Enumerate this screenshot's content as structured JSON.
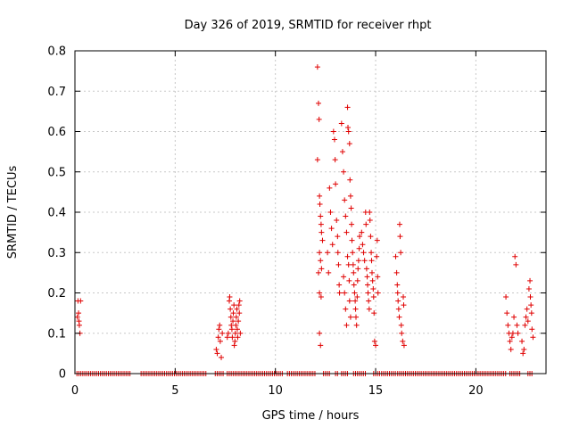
{
  "chart_data": {
    "type": "scatter",
    "title": "Day 326 of 2019, SRMTID for receiver rhpt",
    "xlabel": "GPS time / hours",
    "ylabel": "SRMTID / TECUs",
    "xlim": [
      0,
      23.5
    ],
    "ylim": [
      0,
      0.8
    ],
    "xticks": [
      0,
      5,
      10,
      15,
      20
    ],
    "xtick_labels": [
      "0",
      "5",
      "10",
      "15",
      "20"
    ],
    "yticks": [
      0,
      0.1,
      0.2,
      0.3,
      0.4,
      0.5,
      0.6,
      0.7,
      0.8
    ],
    "ytick_labels": [
      "0",
      "0.1",
      "0.2",
      "0.3",
      "0.4",
      "0.5",
      "0.6",
      "0.7",
      "0.8"
    ],
    "grid": true,
    "marker": "+",
    "color": "#e00000",
    "zero_ranges": [
      [
        0.1,
        2.8
      ],
      [
        3.3,
        6.6
      ],
      [
        7.0,
        7.4
      ],
      [
        7.6,
        10.4
      ],
      [
        10.6,
        12.0
      ],
      [
        12.4,
        12.7
      ],
      [
        13.0,
        13.1
      ],
      [
        13.3,
        13.6
      ],
      [
        13.9,
        14.5
      ],
      [
        14.9,
        15.2
      ],
      [
        15.3,
        16.0
      ],
      [
        16.1,
        21.5
      ],
      [
        21.7,
        22.2
      ],
      [
        22.6,
        22.8
      ]
    ],
    "points": [
      [
        0.15,
        0.18
      ],
      [
        0.18,
        0.15
      ],
      [
        0.2,
        0.13
      ],
      [
        0.22,
        0.12
      ],
      [
        0.25,
        0.1
      ],
      [
        0.28,
        0.18
      ],
      [
        0.12,
        0.14
      ],
      [
        7.05,
        0.06
      ],
      [
        7.1,
        0.05
      ],
      [
        7.15,
        0.09
      ],
      [
        7.18,
        0.11
      ],
      [
        7.22,
        0.12
      ],
      [
        7.25,
        0.08
      ],
      [
        7.3,
        0.04
      ],
      [
        7.35,
        0.1
      ],
      [
        7.6,
        0.09
      ],
      [
        7.65,
        0.1
      ],
      [
        7.7,
        0.18
      ],
      [
        7.72,
        0.19
      ],
      [
        7.75,
        0.16
      ],
      [
        7.78,
        0.14
      ],
      [
        7.8,
        0.12
      ],
      [
        7.83,
        0.11
      ],
      [
        7.85,
        0.09
      ],
      [
        7.88,
        0.13
      ],
      [
        7.9,
        0.15
      ],
      [
        7.93,
        0.17
      ],
      [
        7.95,
        0.07
      ],
      [
        7.98,
        0.08
      ],
      [
        8.0,
        0.1
      ],
      [
        8.03,
        0.12
      ],
      [
        8.05,
        0.14
      ],
      [
        8.08,
        0.16
      ],
      [
        8.1,
        0.11
      ],
      [
        8.12,
        0.09
      ],
      [
        8.15,
        0.13
      ],
      [
        8.18,
        0.17
      ],
      [
        8.2,
        0.15
      ],
      [
        8.22,
        0.18
      ],
      [
        8.25,
        0.1
      ],
      [
        12.1,
        0.76
      ],
      [
        12.15,
        0.67
      ],
      [
        12.18,
        0.63
      ],
      [
        12.1,
        0.53
      ],
      [
        12.2,
        0.44
      ],
      [
        12.22,
        0.42
      ],
      [
        12.25,
        0.39
      ],
      [
        12.28,
        0.37
      ],
      [
        12.3,
        0.35
      ],
      [
        12.2,
        0.3
      ],
      [
        12.25,
        0.28
      ],
      [
        12.3,
        0.26
      ],
      [
        12.15,
        0.25
      ],
      [
        12.2,
        0.2
      ],
      [
        12.28,
        0.19
      ],
      [
        12.2,
        0.1
      ],
      [
        12.25,
        0.07
      ],
      [
        12.35,
        0.33
      ],
      [
        12.6,
        0.3
      ],
      [
        12.65,
        0.25
      ],
      [
        12.7,
        0.46
      ],
      [
        12.75,
        0.4
      ],
      [
        12.8,
        0.36
      ],
      [
        12.85,
        0.32
      ],
      [
        12.9,
        0.6
      ],
      [
        12.95,
        0.58
      ],
      [
        12.98,
        0.53
      ],
      [
        13.0,
        0.47
      ],
      [
        13.05,
        0.38
      ],
      [
        13.1,
        0.34
      ],
      [
        13.12,
        0.3
      ],
      [
        13.15,
        0.27
      ],
      [
        13.18,
        0.22
      ],
      [
        13.2,
        0.2
      ],
      [
        13.3,
        0.62
      ],
      [
        13.35,
        0.55
      ],
      [
        13.4,
        0.5
      ],
      [
        13.45,
        0.43
      ],
      [
        13.5,
        0.39
      ],
      [
        13.55,
        0.35
      ],
      [
        13.6,
        0.66
      ],
      [
        13.62,
        0.61
      ],
      [
        13.65,
        0.6
      ],
      [
        13.7,
        0.57
      ],
      [
        13.72,
        0.48
      ],
      [
        13.75,
        0.44
      ],
      [
        13.78,
        0.41
      ],
      [
        13.8,
        0.37
      ],
      [
        13.82,
        0.33
      ],
      [
        13.85,
        0.3
      ],
      [
        13.88,
        0.27
      ],
      [
        13.9,
        0.25
      ],
      [
        13.92,
        0.22
      ],
      [
        13.95,
        0.2
      ],
      [
        13.98,
        0.18
      ],
      [
        14.0,
        0.16
      ],
      [
        14.02,
        0.14
      ],
      [
        14.05,
        0.12
      ],
      [
        14.08,
        0.19
      ],
      [
        14.1,
        0.23
      ],
      [
        14.12,
        0.26
      ],
      [
        14.15,
        0.28
      ],
      [
        14.18,
        0.31
      ],
      [
        14.2,
        0.34
      ],
      [
        14.3,
        0.35
      ],
      [
        14.35,
        0.32
      ],
      [
        14.4,
        0.3
      ],
      [
        14.45,
        0.28
      ],
      [
        14.5,
        0.4
      ],
      [
        14.52,
        0.37
      ],
      [
        14.55,
        0.26
      ],
      [
        14.58,
        0.24
      ],
      [
        14.6,
        0.22
      ],
      [
        14.62,
        0.2
      ],
      [
        14.65,
        0.18
      ],
      [
        14.68,
        0.16
      ],
      [
        14.7,
        0.4
      ],
      [
        14.72,
        0.38
      ],
      [
        14.75,
        0.34
      ],
      [
        14.78,
        0.3
      ],
      [
        14.8,
        0.28
      ],
      [
        14.82,
        0.25
      ],
      [
        14.85,
        0.23
      ],
      [
        14.88,
        0.21
      ],
      [
        14.9,
        0.19
      ],
      [
        14.92,
        0.15
      ],
      [
        14.95,
        0.08
      ],
      [
        15.0,
        0.07
      ],
      [
        15.05,
        0.29
      ],
      [
        15.08,
        0.33
      ],
      [
        15.1,
        0.24
      ],
      [
        15.12,
        0.2
      ],
      [
        13.4,
        0.24
      ],
      [
        13.45,
        0.2
      ],
      [
        13.5,
        0.16
      ],
      [
        13.55,
        0.12
      ],
      [
        13.6,
        0.29
      ],
      [
        13.65,
        0.27
      ],
      [
        13.68,
        0.23
      ],
      [
        13.7,
        0.18
      ],
      [
        13.75,
        0.14
      ],
      [
        16.0,
        0.29
      ],
      [
        16.05,
        0.25
      ],
      [
        16.08,
        0.22
      ],
      [
        16.1,
        0.2
      ],
      [
        16.12,
        0.18
      ],
      [
        16.15,
        0.16
      ],
      [
        16.18,
        0.14
      ],
      [
        16.2,
        0.37
      ],
      [
        16.22,
        0.34
      ],
      [
        16.25,
        0.3
      ],
      [
        16.28,
        0.12
      ],
      [
        16.3,
        0.1
      ],
      [
        16.35,
        0.08
      ],
      [
        16.38,
        0.19
      ],
      [
        16.4,
        0.17
      ],
      [
        16.42,
        0.07
      ],
      [
        21.5,
        0.19
      ],
      [
        21.55,
        0.15
      ],
      [
        21.6,
        0.12
      ],
      [
        21.65,
        0.1
      ],
      [
        21.7,
        0.08
      ],
      [
        21.75,
        0.06
      ],
      [
        21.8,
        0.09
      ],
      [
        21.85,
        0.1
      ],
      [
        21.9,
        0.14
      ],
      [
        21.95,
        0.29
      ],
      [
        22.0,
        0.27
      ],
      [
        22.05,
        0.12
      ],
      [
        22.1,
        0.1
      ],
      [
        22.3,
        0.08
      ],
      [
        22.35,
        0.05
      ],
      [
        22.4,
        0.06
      ],
      [
        22.45,
        0.12
      ],
      [
        22.5,
        0.14
      ],
      [
        22.55,
        0.16
      ],
      [
        22.6,
        0.13
      ],
      [
        22.65,
        0.21
      ],
      [
        22.7,
        0.23
      ],
      [
        22.72,
        0.19
      ],
      [
        22.75,
        0.17
      ],
      [
        22.78,
        0.15
      ],
      [
        22.8,
        0.11
      ],
      [
        22.85,
        0.09
      ]
    ]
  }
}
